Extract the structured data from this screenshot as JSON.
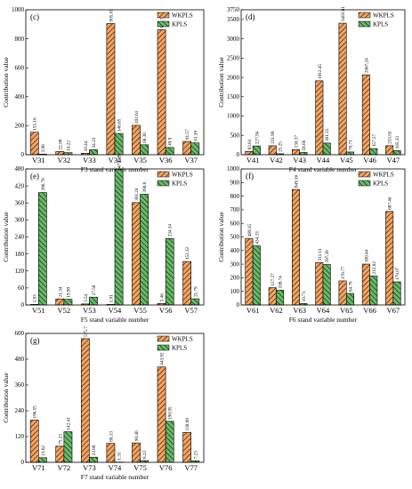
{
  "colors": {
    "wkpls": "#f4a460",
    "kpls": "#66bb66",
    "frame": "#000000",
    "hatch": "#000000"
  },
  "chart_data": [
    {
      "type": "bar",
      "panel_label": "(c)",
      "xlabel": "F3 stand variable number",
      "ylabel": "Contribution value",
      "categories": [
        "V31",
        "V32",
        "V33",
        "V34",
        "V35",
        "V36",
        "V37"
      ],
      "ylim": [
        0,
        1000
      ],
      "yticks": [
        0,
        200,
        400,
        600,
        800,
        1000
      ],
      "legend_position": "top-right",
      "grid": false,
      "series": [
        {
          "name": "WKPLS",
          "values": [
            155.16,
            22.09,
            10.44,
            905.01,
            202.61,
            863.77,
            91.57
          ],
          "labels": [
            "155.16",
            "22.09",
            "10.44",
            "905.01",
            "202.61",
            "863.77",
            "91.57"
          ]
        },
        {
          "name": "KPLS",
          "values": [
            3.98,
            14.22,
            34.23,
            146.65,
            68.38,
            49.9,
            81.39
          ],
          "labels": [
            "3.98",
            "14.22",
            "34.23",
            "146.65",
            "68.38",
            "49.9",
            "81.39"
          ]
        }
      ]
    },
    {
      "type": "bar",
      "panel_label": "(d)",
      "xlabel": "F4 stand variable number",
      "ylabel": "Contribution value",
      "categories": [
        "V41",
        "V42",
        "V43",
        "V44",
        "V45",
        "V46",
        "V47"
      ],
      "ylim": [
        0,
        3750
      ],
      "yticks": [
        0,
        500,
        1000,
        1500,
        2000,
        2500,
        3000,
        3500,
        3750
      ],
      "legend_position": "top-right",
      "grid": false,
      "series": [
        {
          "name": "WKPLS",
          "values": [
            83.81,
            231.99,
            130.37,
            1912.45,
            3403.61,
            2067.24,
            233.03
          ],
          "labels": [
            "83.81",
            "231.99",
            "130.37",
            "1912.45",
            "3403.61",
            "2067.24",
            "233.03"
          ]
        },
        {
          "name": "KPLS",
          "values": [
            227.56,
            25.25,
            58.66,
            301.15,
            70.71,
            157.57,
            105.33
          ],
          "labels": [
            "227.56",
            "25.25",
            "58.66",
            "301.15",
            "70.71",
            "157.57",
            "105.33"
          ]
        }
      ]
    },
    {
      "type": "bar",
      "panel_label": "(e)",
      "xlabel": "F5 stand variable number",
      "ylabel": "Contribution value",
      "categories": [
        "V51",
        "V52",
        "V53",
        "V54",
        "V55",
        "V56",
        "V57"
      ],
      "ylim": [
        0,
        480
      ],
      "yticks": [
        0,
        60,
        120,
        180,
        240,
        300,
        360,
        420,
        480
      ],
      "legend_position": "top-right",
      "grid": false,
      "series": [
        {
          "name": "WKPLS",
          "values": [
            1.93,
            21.34,
            3.54,
            1.91,
            361.24,
            5.46,
            153.32
          ],
          "labels": [
            "1.93",
            "21.34",
            "3.54",
            "1.91",
            "361.24",
            "5.46",
            "153.32"
          ]
        },
        {
          "name": "KPLS",
          "values": [
            396.78,
            19.99,
            27.58,
            477.39,
            390.8,
            234.34,
            21.79
          ],
          "labels": [
            "396.78",
            "19.99",
            "27.58",
            "477.39",
            "390.8",
            "234.34",
            "21.79"
          ]
        }
      ]
    },
    {
      "type": "bar",
      "panel_label": "(f)",
      "xlabel": "F6 stand variable number",
      "ylabel": "Contribution value",
      "categories": [
        "V61",
        "V62",
        "V63",
        "V64",
        "V65",
        "V66",
        "V67"
      ],
      "ylim": [
        0,
        1000
      ],
      "yticks": [
        0,
        100,
        200,
        300,
        400,
        500,
        600,
        700,
        800,
        900,
        1000
      ],
      "legend_position": "top-right",
      "grid": false,
      "series": [
        {
          "name": "WKPLS",
          "values": [
            489.15,
            127.27,
            849.16,
            311.11,
            176.77,
            300.44,
            687.46
          ],
          "labels": [
            "489.15",
            "127.27",
            "849.16",
            "311.11",
            "176.77",
            "300.44",
            "687.46"
          ]
        },
        {
          "name": "KPLS",
          "values": [
            434.33,
            108.74,
            10.71,
            297.28,
            84.78,
            212.82,
            170.07
          ],
          "labels": [
            "434.33",
            "108.74",
            "10.71",
            "297.28",
            "84.78",
            "212.82",
            "170.07"
          ]
        }
      ]
    },
    {
      "type": "bar",
      "panel_label": "(g)",
      "xlabel": "F7 stand variable number",
      "ylabel": "Contribution value",
      "categories": [
        "V71",
        "V72",
        "V73",
        "V74",
        "V75",
        "V76",
        "V77"
      ],
      "ylim": [
        0,
        600
      ],
      "yticks": [
        0,
        120,
        240,
        360,
        480,
        600
      ],
      "legend_position": "top-right",
      "grid": false,
      "series": [
        {
          "name": "WKPLS",
          "values": [
            196.55,
            75.23,
            575.7,
            88.13,
            90.46,
            443.92,
            138.99
          ],
          "labels": [
            "196.55",
            "75.23",
            "575.7",
            "88.13",
            "90.46",
            "443.92",
            "138.99"
          ]
        },
        {
          "name": "KPLS",
          "values": [
            21.62,
            142.41,
            23.88,
            1.31,
            8.22,
            190.95,
            7.23
          ],
          "labels": [
            "21.62",
            "142.41",
            "23.88",
            "1.31",
            "8.22",
            "190.95",
            "7.23"
          ]
        }
      ]
    }
  ]
}
